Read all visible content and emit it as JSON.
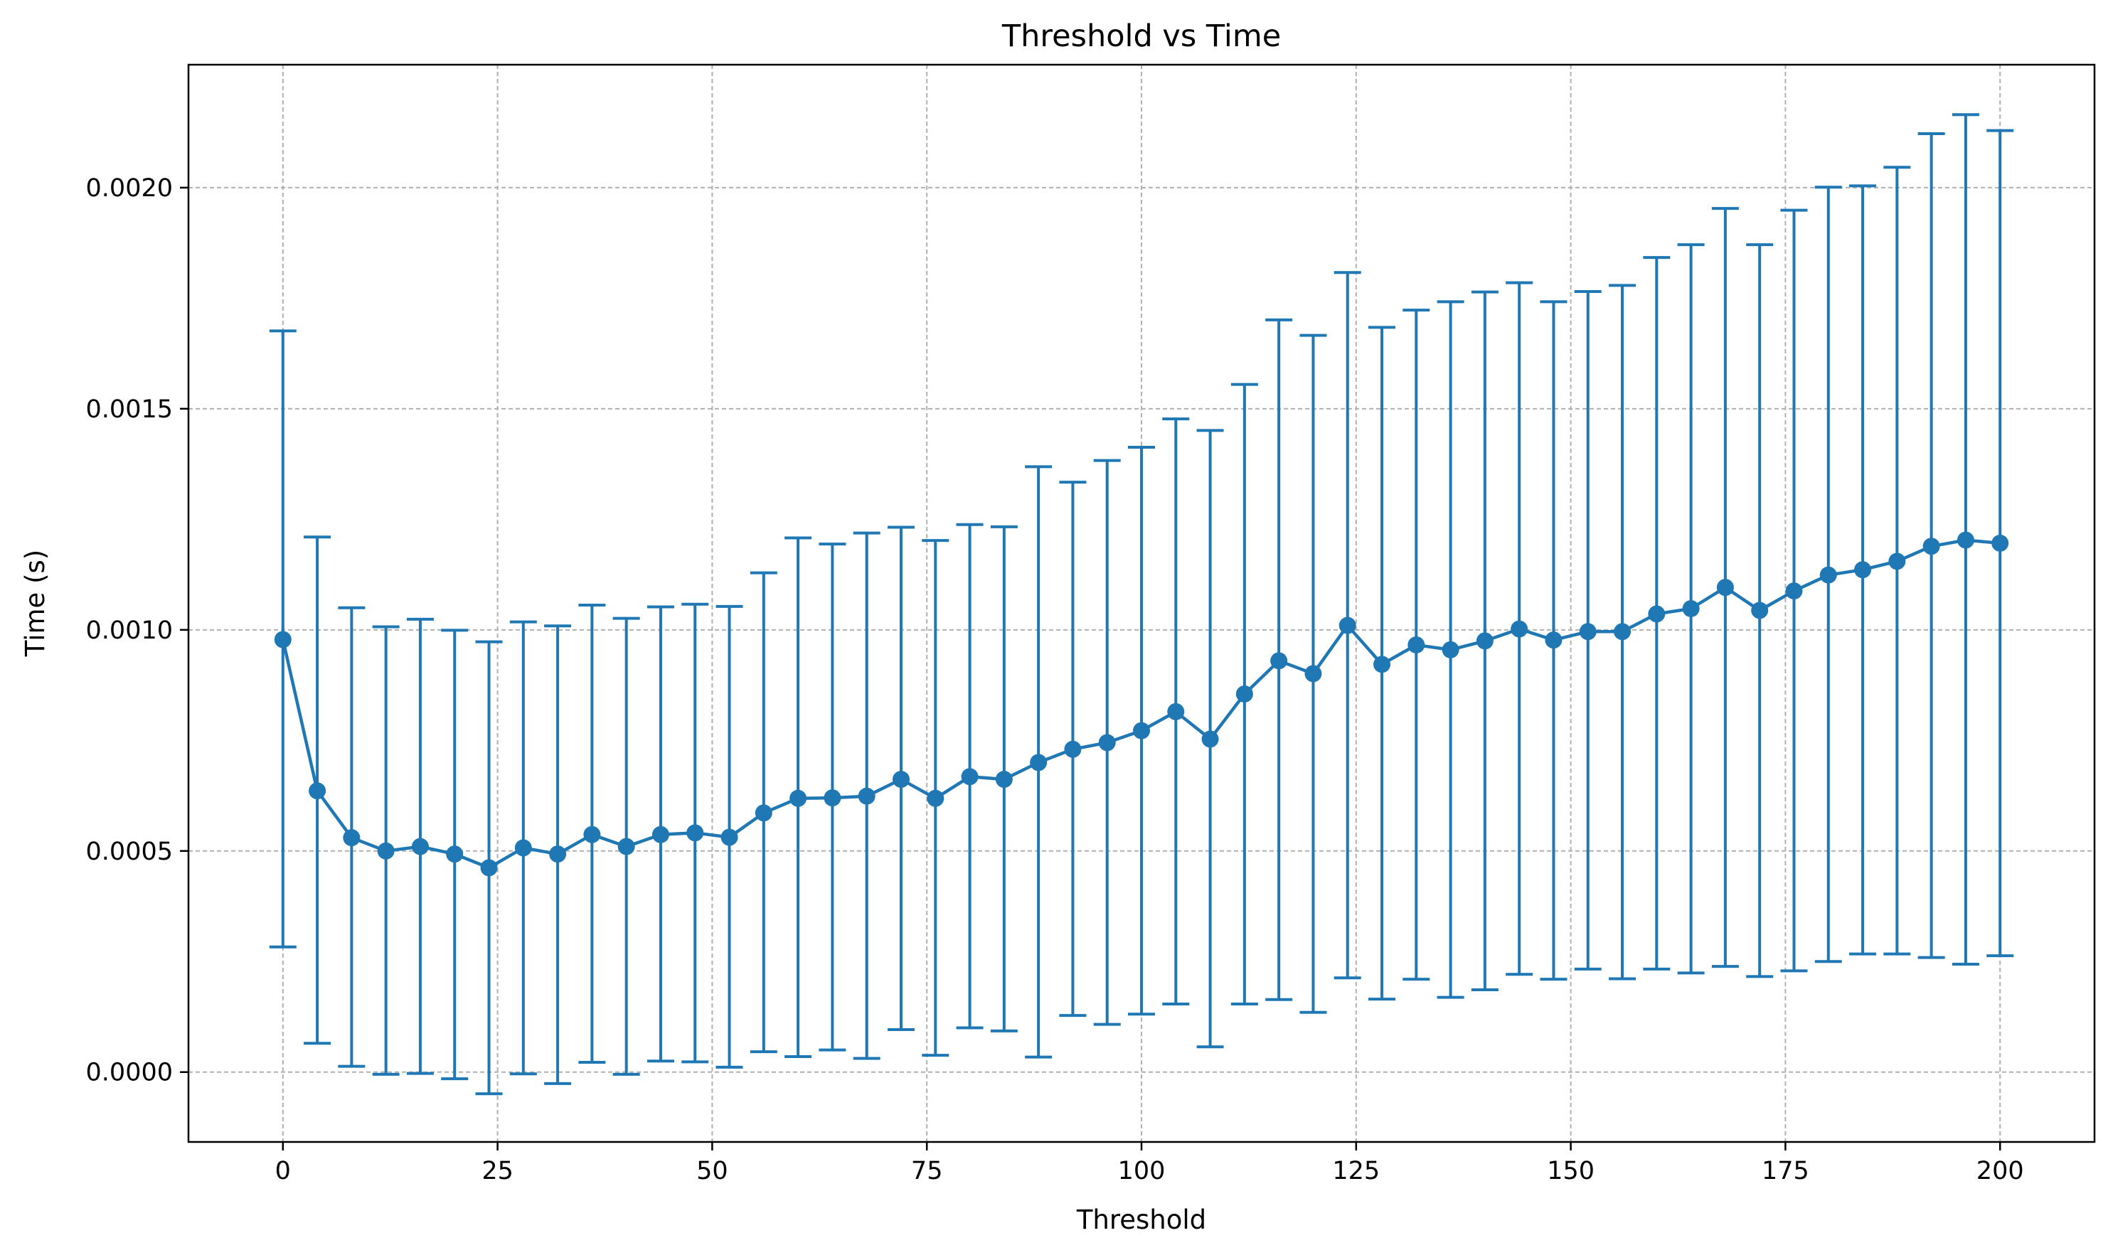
{
  "chart_data": {
    "type": "line",
    "title": "Threshold vs Time",
    "xlabel": "Threshold",
    "ylabel": "Time (s)",
    "xlim": [
      -11,
      211
    ],
    "ylim": [
      -0.000158,
      0.002278
    ],
    "xticks": [
      0,
      25,
      50,
      75,
      100,
      125,
      150,
      175,
      200
    ],
    "xtick_labels": [
      "0",
      "25",
      "50",
      "75",
      "100",
      "125",
      "150",
      "175",
      "200"
    ],
    "yticks": [
      0.0,
      0.0005,
      0.001,
      0.0015,
      0.002
    ],
    "ytick_labels": [
      "0.0000",
      "0.0005",
      "0.0010",
      "0.0015",
      "0.0020"
    ],
    "grid": true,
    "color": "#1f77b4",
    "series": [
      {
        "x": [
          0,
          4,
          8,
          12,
          16,
          20,
          24,
          28,
          32,
          36,
          40,
          44,
          48,
          52,
          56,
          60,
          64,
          68,
          72,
          76,
          80,
          84,
          88,
          92,
          96,
          100,
          104,
          108,
          112,
          116,
          120,
          124,
          128,
          132,
          136,
          140,
          144,
          148,
          152,
          156,
          160,
          164,
          168,
          172,
          176,
          180,
          184,
          188,
          192,
          196,
          200
        ],
        "y": [
          0.000978,
          0.000636,
          0.00053,
          0.0005,
          0.00051,
          0.000493,
          0.000462,
          0.000507,
          0.000493,
          0.000537,
          0.00051,
          0.000537,
          0.000541,
          0.000531,
          0.000586,
          0.000619,
          0.00062,
          0.000624,
          0.000662,
          0.000619,
          0.000668,
          0.000662,
          0.0007,
          0.00073,
          0.000745,
          0.000772,
          0.000815,
          0.000753,
          0.000855,
          0.00093,
          0.000901,
          0.00101,
          0.000922,
          0.000966,
          0.000955,
          0.000975,
          0.001002,
          0.000977,
          0.000996,
          0.000996,
          0.001036,
          0.001048,
          0.001096,
          0.001044,
          0.001088,
          0.001124,
          0.001136,
          0.001155,
          0.001189,
          0.001203,
          0.001196
        ],
        "yerr_low": [
          0.000283,
          6.5e-05,
          1.3e-05,
          -5e-06,
          -3e-06,
          -1.5e-05,
          -4.9e-05,
          -4e-06,
          -2.6e-05,
          2.2e-05,
          -5e-06,
          2.5e-05,
          2.3e-05,
          1.1e-05,
          4.6e-05,
          3.5e-05,
          5e-05,
          3.1e-05,
          9.6e-05,
          3.8e-05,
          0.0001,
          9.3e-05,
          3.4e-05,
          0.000128,
          0.000108,
          0.000131,
          0.000154,
          5.7e-05,
          0.000154,
          0.000164,
          0.000135,
          0.000213,
          0.000165,
          0.00021,
          0.000169,
          0.000186,
          0.000221,
          0.00021,
          0.000233,
          0.000211,
          0.000233,
          0.000224,
          0.000239,
          0.000216,
          0.000229,
          0.00025,
          0.000267,
          0.000267,
          0.000259,
          0.000244,
          0.000263
        ],
        "yerr_high": [
          0.001676,
          0.00121,
          0.00105,
          0.001007,
          0.001024,
          0.000999,
          0.000973,
          0.001018,
          0.001009,
          0.001056,
          0.001026,
          0.001052,
          0.001058,
          0.001053,
          0.001129,
          0.001208,
          0.001194,
          0.001219,
          0.001232,
          0.001202,
          0.001238,
          0.001233,
          0.001369,
          0.001334,
          0.001383,
          0.001413,
          0.001477,
          0.001451,
          0.001555,
          0.001701,
          0.001666,
          0.001808,
          0.001684,
          0.001723,
          0.001742,
          0.001764,
          0.001785,
          0.001742,
          0.001765,
          0.001779,
          0.001842,
          0.001871,
          0.001953,
          0.001871,
          0.001949,
          0.002001,
          0.002004,
          0.002046,
          0.002122,
          0.002165,
          0.002129
        ]
      }
    ]
  }
}
